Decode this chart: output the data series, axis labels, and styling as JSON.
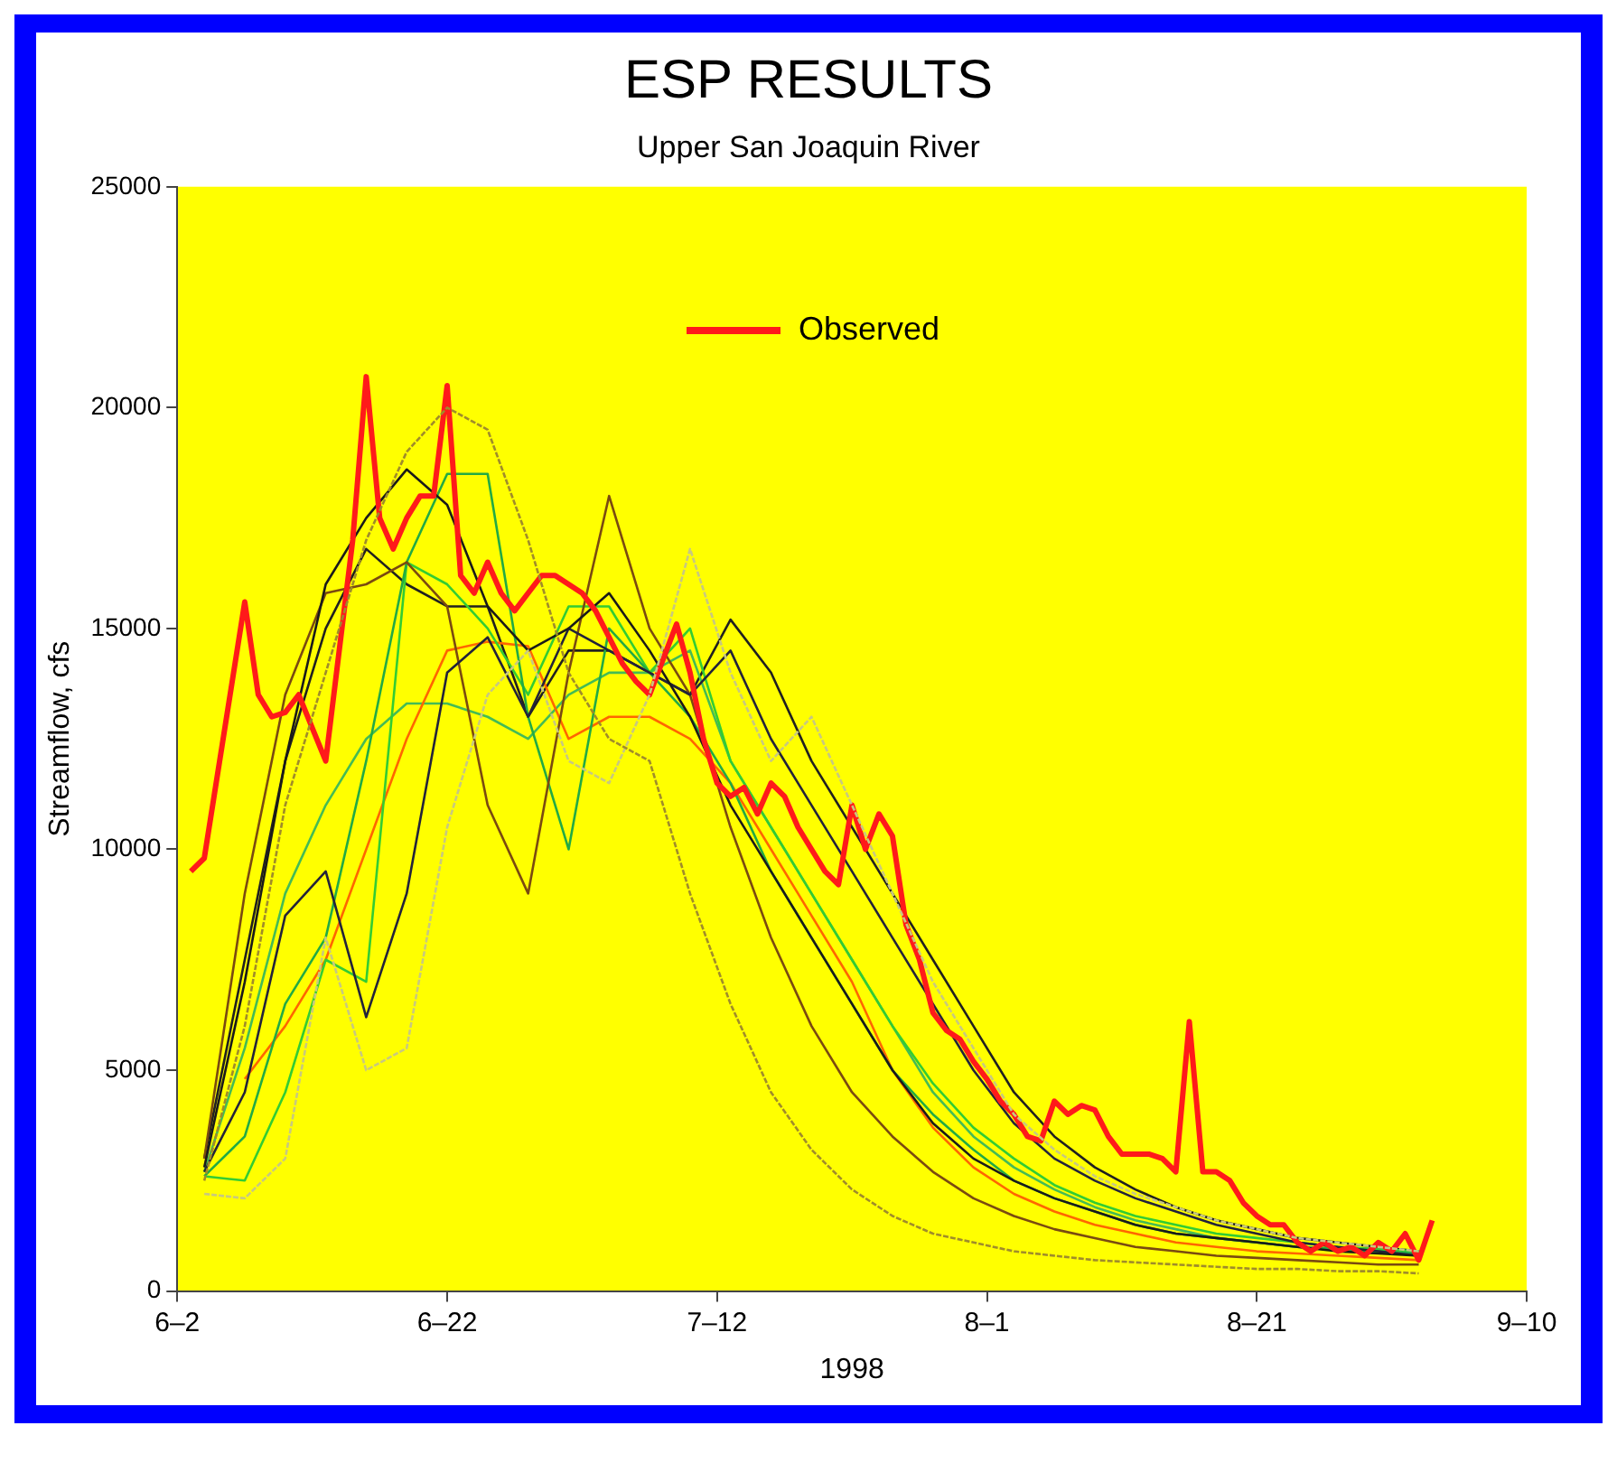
{
  "chart_data": {
    "type": "line",
    "title": "ESP RESULTS",
    "subtitle": "Upper San Joaquin River",
    "xlabel": "1998",
    "ylabel": "Streamflow, cfs",
    "xlim": [
      "--06-02",
      "--09-10"
    ],
    "xticks": [
      {
        "value": "--06-02",
        "label": "6–2"
      },
      {
        "value": "--06-22",
        "label": "6–22"
      },
      {
        "value": "--07-12",
        "label": "7–12"
      },
      {
        "value": "--08-01",
        "label": "8–1"
      },
      {
        "value": "--08-21",
        "label": "8–21"
      },
      {
        "value": "--09-10",
        "label": "9–10"
      }
    ],
    "ylim": [
      0,
      25000
    ],
    "yticks": [
      0,
      5000,
      10000,
      15000,
      20000,
      25000
    ],
    "grid": false,
    "legend": "top",
    "marker": "none",
    "line_style": "solid",
    "x": [
      "--06-04",
      "--06-07",
      "--06-10",
      "--06-13",
      "--06-16",
      "--06-19",
      "--06-22",
      "--06-25",
      "--06-28",
      "--07-01",
      "--07-04",
      "--07-07",
      "--07-10",
      "--07-13",
      "--07-16",
      "--07-19",
      "--07-22",
      "--07-25",
      "--07-28",
      "--07-31",
      "--08-03",
      "--08-06",
      "--08-09",
      "--08-12",
      "--08-15",
      "--08-18",
      "--08-21",
      "--08-24",
      "--08-27",
      "--08-30",
      "--09-02"
    ],
    "series": [
      {
        "color": "#1a1a1a",
        "values": [
          2800,
          7000,
          12000,
          16000,
          17500,
          18600,
          17800,
          15500,
          14500,
          15000,
          15800,
          14500,
          13000,
          11000,
          9500,
          8000,
          6500,
          5000,
          3800,
          3000,
          2500,
          2100,
          1800,
          1500,
          1300,
          1200,
          1100,
          1000,
          900,
          850,
          800
        ]
      },
      {
        "color": "#23233a",
        "values": [
          2700,
          4500,
          8500,
          9500,
          6200,
          9000,
          14000,
          14800,
          13000,
          15000,
          14500,
          14000,
          13500,
          14500,
          12500,
          11000,
          9500,
          8000,
          6500,
          5000,
          3800,
          3000,
          2500,
          2100,
          1800,
          1500,
          1300,
          1100,
          1000,
          900,
          800
        ]
      },
      {
        "color": "#a08c2a",
        "line_style": "dotted",
        "values": [
          2500,
          6000,
          11000,
          14000,
          17000,
          19000,
          20000,
          19500,
          17000,
          14000,
          12500,
          12000,
          9000,
          6500,
          4500,
          3200,
          2300,
          1700,
          1300,
          1100,
          900,
          800,
          700,
          650,
          600,
          550,
          500,
          500,
          450,
          450,
          400
        ]
      },
      {
        "color": "#7a4a10",
        "values": [
          3000,
          9000,
          13500,
          15800,
          16000,
          16500,
          15500,
          11000,
          9000,
          14000,
          18000,
          15000,
          13500,
          10500,
          8000,
          6000,
          4500,
          3500,
          2700,
          2100,
          1700,
          1400,
          1200,
          1000,
          900,
          800,
          750,
          700,
          650,
          600,
          600
        ]
      },
      {
        "color": "#22aa44",
        "values": [
          2600,
          3500,
          6500,
          8000,
          12000,
          16500,
          18500,
          18500,
          13000,
          10000,
          15000,
          14000,
          13000,
          11500,
          9500,
          8000,
          6500,
          5000,
          4000,
          3200,
          2500,
          2100,
          1800,
          1500,
          1300,
          1200,
          1100,
          1000,
          950,
          900,
          850
        ]
      },
      {
        "color": "#33cc33",
        "values": [
          2600,
          2500,
          4500,
          7500,
          7000,
          16500,
          16000,
          15000,
          13500,
          15500,
          15500,
          14000,
          15000,
          12000,
          10500,
          9000,
          7500,
          6000,
          4700,
          3700,
          3000,
          2400,
          2000,
          1700,
          1500,
          1300,
          1200,
          1100,
          1000,
          950,
          900
        ]
      },
      {
        "color": "#ff6600",
        "values": [
          null,
          4800,
          6000,
          7500,
          10000,
          12500,
          14500,
          14700,
          14600,
          12500,
          13000,
          13000,
          12500,
          11500,
          10000,
          8500,
          7000,
          5000,
          3700,
          2800,
          2200,
          1800,
          1500,
          1300,
          1100,
          1000,
          900,
          850,
          800,
          750,
          700
        ]
      },
      {
        "color": "#c8c880",
        "line_style": "dotted",
        "values": [
          2200,
          2100,
          3000,
          8000,
          5000,
          5500,
          10500,
          13500,
          14500,
          12000,
          11500,
          13500,
          16800,
          14000,
          12000,
          13000,
          11000,
          9000,
          7000,
          5500,
          4000,
          3200,
          2600,
          2200,
          1900,
          1600,
          1400,
          1200,
          1100,
          1000,
          900
        ]
      },
      {
        "color": "#44bb55",
        "values": [
          2700,
          5500,
          9000,
          11000,
          12500,
          13300,
          13300,
          13000,
          12500,
          13500,
          14000,
          14000,
          14500,
          12000,
          10500,
          9000,
          7500,
          6000,
          4500,
          3500,
          2800,
          2300,
          1900,
          1600,
          1400,
          1200,
          1100,
          1000,
          950,
          900,
          850
        ]
      },
      {
        "color": "#202020",
        "values": [
          3000,
          7500,
          12000,
          15000,
          16800,
          16000,
          15500,
          15500,
          13000,
          14500,
          14500,
          14000,
          13500,
          15200,
          14000,
          12000,
          10500,
          9000,
          7500,
          6000,
          4500,
          3500,
          2800,
          2300,
          1900,
          1600,
          1400,
          1200,
          1100,
          1000,
          900
        ]
      },
      {
        "name": "Observed",
        "color": "#ff1a1a",
        "x": [
          "--06-03",
          "--06-04",
          "--06-07",
          "--06-08",
          "--06-09",
          "--06-10",
          "--06-11",
          "--06-13",
          "--06-15",
          "--06-16",
          "--06-17",
          "--06-18",
          "--06-19",
          "--06-20",
          "--06-21",
          "--06-22",
          "--06-23",
          "--06-24",
          "--06-25",
          "--06-26",
          "--06-27",
          "--06-28",
          "--06-29",
          "--06-30",
          "--07-01",
          "--07-02",
          "--07-03",
          "--07-04",
          "--07-05",
          "--07-06",
          "--07-07",
          "--07-08",
          "--07-09",
          "--07-10",
          "--07-11",
          "--07-12",
          "--07-13",
          "--07-14",
          "--07-15",
          "--07-16",
          "--07-17",
          "--07-18",
          "--07-19",
          "--07-20",
          "--07-21",
          "--07-22",
          "--07-23",
          "--07-24",
          "--07-25",
          "--07-26",
          "--07-27",
          "--07-28",
          "--07-29",
          "--07-30",
          "--07-31",
          "--08-01",
          "--08-02",
          "--08-03",
          "--08-04",
          "--08-05",
          "--08-06",
          "--08-07",
          "--08-08",
          "--08-09",
          "--08-10",
          "--08-11",
          "--08-12",
          "--08-13",
          "--08-14",
          "--08-15",
          "--08-16",
          "--08-17",
          "--08-18",
          "--08-19",
          "--08-20",
          "--08-21",
          "--08-22",
          "--08-23",
          "--08-24",
          "--08-25",
          "--08-26",
          "--08-27",
          "--08-28",
          "--08-29",
          "--08-30",
          "--08-31",
          "--09-01",
          "--09-02",
          "--09-03"
        ],
        "values": [
          9500,
          9800,
          15600,
          13500,
          13000,
          13100,
          13500,
          12000,
          17000,
          20700,
          17500,
          16800,
          17500,
          18000,
          18000,
          20500,
          16200,
          15800,
          16500,
          15800,
          15400,
          15800,
          16200,
          16200,
          16000,
          15800,
          15400,
          14800,
          14200,
          13800,
          13500,
          14300,
          15100,
          14000,
          12500,
          11500,
          11200,
          11400,
          10800,
          11500,
          11200,
          10500,
          10000,
          9500,
          9200,
          11000,
          10000,
          10800,
          10300,
          8300,
          7500,
          6300,
          5900,
          5700,
          5200,
          4800,
          4300,
          4000,
          3500,
          3400,
          4300,
          4000,
          4200,
          4100,
          3500,
          3100,
          3100,
          3100,
          3000,
          2700,
          6100,
          2700,
          2700,
          2500,
          2000,
          1700,
          1500,
          1500,
          1100,
          900,
          1100,
          900,
          1000,
          800,
          1100,
          900,
          1300,
          700,
          1600
        ]
      }
    ]
  }
}
